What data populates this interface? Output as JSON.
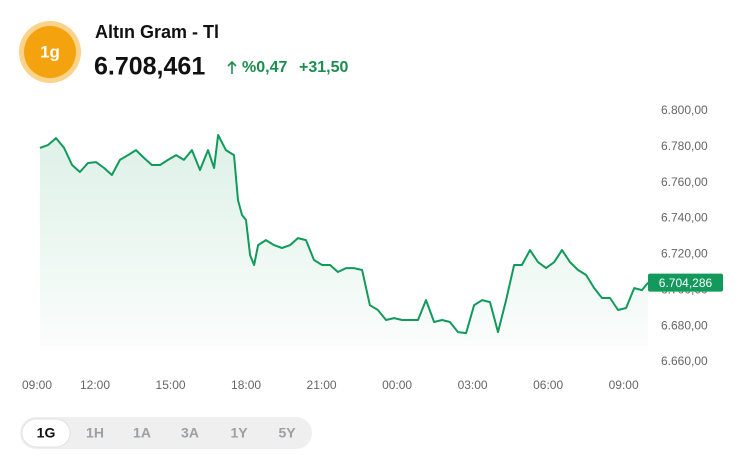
{
  "header": {
    "icon": "1g",
    "title": "Altın Gram - Tl",
    "price": "6.708,461",
    "change_pct": "%0,47",
    "change_abs": "+31,50"
  },
  "chart_data": {
    "type": "line",
    "color": "#119a5b",
    "grid": false,
    "x": [
      0.81,
      1.13,
      1.45,
      1.77,
      2.09,
      2.4,
      2.72,
      3.04,
      3.36,
      3.67,
      3.99,
      4.31,
      4.63,
      4.95,
      5.26,
      5.58,
      5.9,
      6.22,
      6.53,
      6.85,
      7.17,
      7.49,
      7.73,
      7.89,
      8.2,
      8.52,
      8.68,
      8.84,
      9.0,
      9.16,
      9.32,
      9.48,
      9.79,
      10.11,
      10.43,
      10.75,
      11.06,
      11.38,
      11.7,
      12.02,
      12.34,
      12.65,
      12.97,
      13.29,
      13.61,
      13.92,
      14.24,
      14.56,
      14.88,
      15.2,
      15.51,
      15.83,
      16.15,
      16.47,
      16.79,
      17.1,
      17.42,
      17.74,
      18.06,
      18.38,
      18.69,
      19.01,
      19.33,
      19.65,
      19.96,
      20.28,
      20.6,
      20.92,
      21.24,
      21.55,
      21.87,
      22.19,
      22.51,
      22.83,
      23.14,
      23.46,
      23.78,
      24.1,
      24.42,
      24.73,
      24.97
    ],
    "values": [
      6779.4,
      6781.0,
      6784.9,
      6779.4,
      6769.9,
      6766.0,
      6771.0,
      6771.5,
      6768.2,
      6764.3,
      6772.7,
      6775.4,
      6778.2,
      6773.8,
      6769.9,
      6769.9,
      6772.7,
      6775.4,
      6772.7,
      6778.2,
      6767.1,
      6778.2,
      6768.2,
      6786.6,
      6778.2,
      6775.4,
      6750.3,
      6742.0,
      6739.2,
      6719.6,
      6714.1,
      6725.2,
      6728.0,
      6725.2,
      6723.6,
      6725.2,
      6729.1,
      6728.0,
      6716.9,
      6714.1,
      6714.1,
      6710.2,
      6712.4,
      6712.4,
      6711.3,
      6691.7,
      6689.0,
      6683.4,
      6684.5,
      6683.4,
      6683.4,
      6683.4,
      6694.5,
      6682.3,
      6683.4,
      6682.3,
      6676.7,
      6676.1,
      6691.7,
      6694.5,
      6693.4,
      6676.7,
      6694.5,
      6714.1,
      6714.1,
      6722.4,
      6715.7,
      6712.4,
      6715.7,
      6722.4,
      6715.7,
      6711.3,
      6708.5,
      6701.2,
      6695.7,
      6695.7,
      6689.0,
      6690.1,
      6701.2,
      6700.1,
      6704.3
    ],
    "xlim": [
      0,
      25
    ],
    "xticks": [
      {
        "value": 0,
        "label": "09:00"
      },
      {
        "value": 3,
        "label": "12:00"
      },
      {
        "value": 6,
        "label": "15:00"
      },
      {
        "value": 9,
        "label": "18:00"
      },
      {
        "value": 12,
        "label": "21:00"
      },
      {
        "value": 15,
        "label": "00:00"
      },
      {
        "value": 18,
        "label": "03:00"
      },
      {
        "value": 21,
        "label": "06:00"
      },
      {
        "value": 24,
        "label": "09:00"
      }
    ],
    "ylim": [
      6660,
      6800
    ],
    "yticks": [
      {
        "value": 6660,
        "label": "6.660,00"
      },
      {
        "value": 6680,
        "label": "6.680,00"
      },
      {
        "value": 6700,
        "label": "6.700,00"
      },
      {
        "value": 6720,
        "label": "6.720,00"
      },
      {
        "value": 6740,
        "label": "6.740,00"
      },
      {
        "value": 6760,
        "label": "6.760,00"
      },
      {
        "value": 6780,
        "label": "6.780,00"
      },
      {
        "value": 6800,
        "label": "6.800,00"
      }
    ],
    "current_value": {
      "value": 6704.286,
      "label": "6.704,286"
    }
  },
  "range_buttons": [
    "1G",
    "1H",
    "1A",
    "3A",
    "1Y",
    "5Y"
  ]
}
